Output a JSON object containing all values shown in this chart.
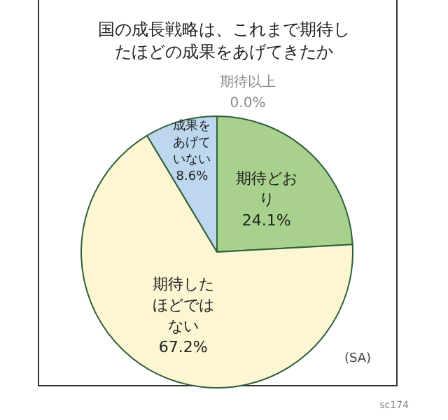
{
  "chart_data": {
    "type": "pie",
    "title": "国の成長戦略は、これまで期待したほどの成果をあげてきたか",
    "categories": [
      "期待以上",
      "期待どおり",
      "期待したほどではない",
      "成果をあげていない"
    ],
    "values": [
      0.0,
      24.1,
      67.2,
      8.6
    ],
    "colors": [
      "#d8ecc0",
      "#a9d18e",
      "#fdf6d3",
      "#bdd7ee"
    ],
    "value_labels": [
      "0.0%",
      "24.1%",
      "67.2%",
      "8.6%"
    ],
    "annotations": [
      "(SA)",
      "sc174"
    ]
  }
}
